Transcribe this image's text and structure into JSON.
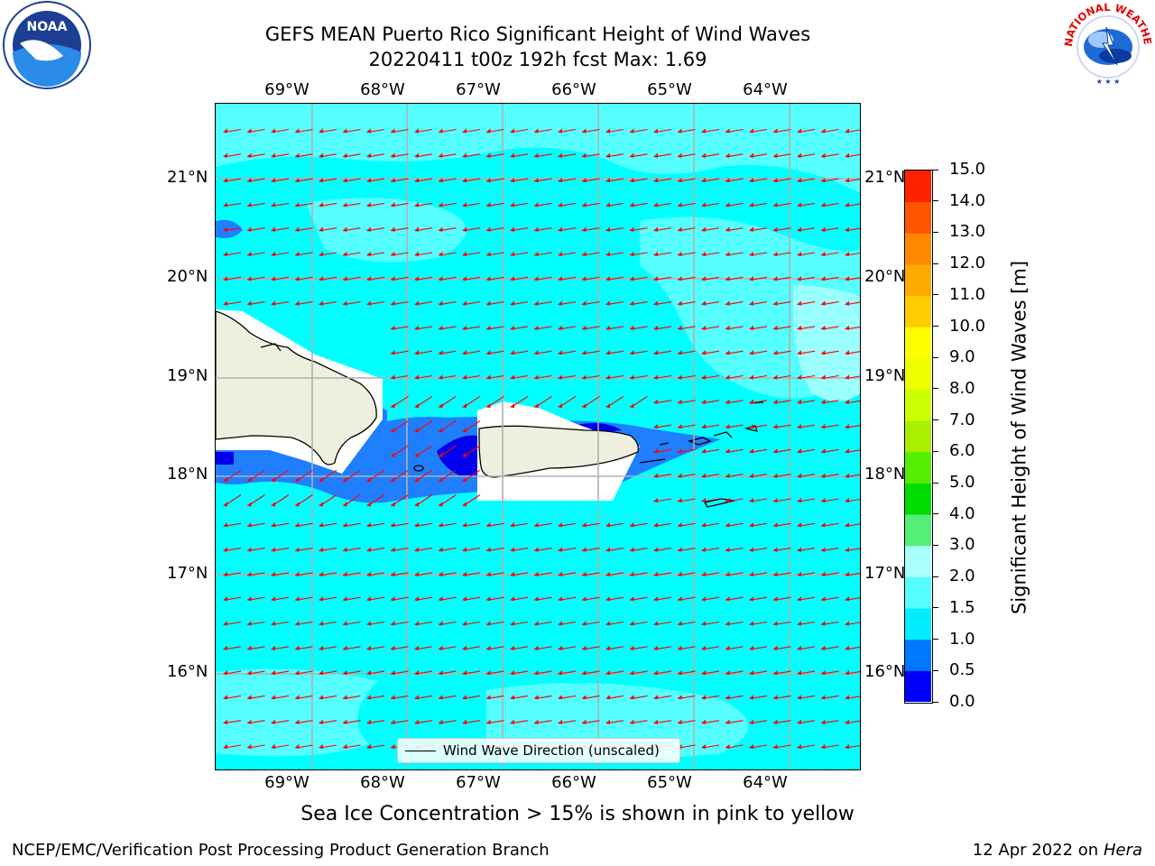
{
  "title": {
    "line1": "GEFS MEAN Puerto Rico Significant Height of Wind Waves",
    "line2": "20220411 t00z 192h fcst   Max: 1.69"
  },
  "map": {
    "lon_ticks": [
      "69°W",
      "68°W",
      "67°W",
      "66°W",
      "65°W",
      "64°W"
    ],
    "lat_ticks": [
      "21°N",
      "20°N",
      "19°N",
      "18°N",
      "17°N",
      "16°N"
    ],
    "legend_label": "Wind Wave Direction (unscaled)",
    "colors": {
      "sea_main": "#00ffff",
      "sea_light": "#4dffff",
      "sea_lighter": "#99ffff",
      "mid_blue": "#1f7fff",
      "deep_blue": "#0000ee",
      "land": "#efefdf",
      "arrow": "#ff0000",
      "grid": "#b0b0b0"
    }
  },
  "colorbar": {
    "label": "Significant Height of Wind Waves [m]",
    "ticks": [
      "0.0",
      "0.5",
      "1.0",
      "1.5",
      "2.0",
      "3.0",
      "4.0",
      "5.0",
      "6.0",
      "7.0",
      "8.0",
      "9.0",
      "10.0",
      "11.0",
      "12.0",
      "13.0",
      "14.0",
      "15.0"
    ],
    "colors": [
      "#0000ff",
      "#0077ff",
      "#00eeff",
      "#55ffff",
      "#aaffff",
      "#55ee77",
      "#00dd00",
      "#55ee00",
      "#aaee00",
      "#ccff00",
      "#eeff00",
      "#ffff00",
      "#ffcc00",
      "#ffaa00",
      "#ff8800",
      "#ff5500",
      "#ff2200"
    ]
  },
  "footnote": "Sea Ice Concentration > 15% is shown in pink to yellow",
  "footer": {
    "left": "NCEP/EMC/Verification Post Processing Product Generation Branch",
    "right_prefix": "12 Apr 2022 on ",
    "right_host": "Hera"
  },
  "logos": {
    "noaa_text": "NOAA",
    "nws_text": "NATIONAL WEATHER SERVICE"
  }
}
